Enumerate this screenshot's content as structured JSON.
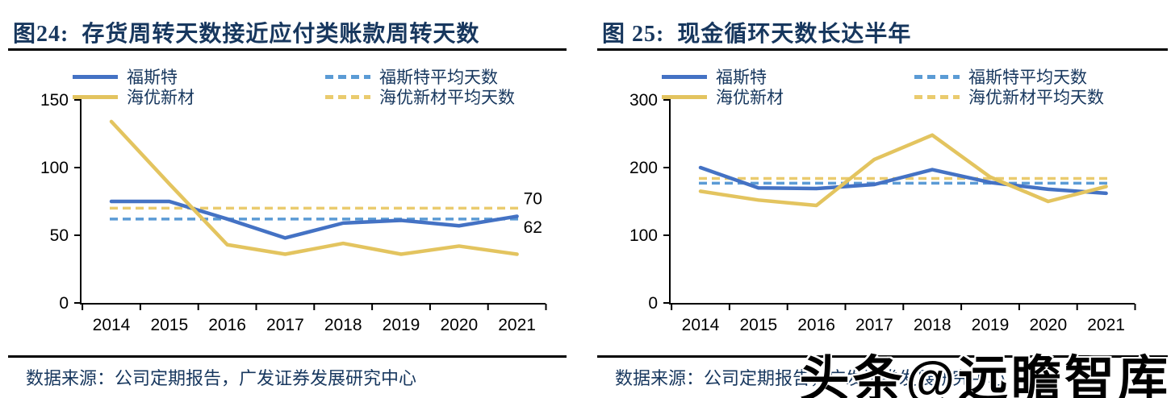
{
  "watermark": {
    "text": "头条@远瞻智库"
  },
  "chart_data": [
    {
      "type": "line",
      "figure_label": "图24:",
      "title": "存货周转天数接近应付类账款周转天数",
      "categories": [
        "2014",
        "2015",
        "2016",
        "2017",
        "2018",
        "2019",
        "2020",
        "2021"
      ],
      "series": [
        {
          "name": "福斯特",
          "color": "#4472C4",
          "line_style": "solid",
          "values": [
            75,
            75,
            62,
            48,
            59,
            61,
            57,
            64
          ]
        },
        {
          "name": "海优新材",
          "color": "#E3C45F",
          "line_style": "solid",
          "values": [
            134,
            88,
            43,
            36,
            44,
            36,
            42,
            36
          ]
        }
      ],
      "avg_lines": [
        {
          "name": "福斯特平均天数",
          "color": "#5B9BD5",
          "line_style": "dashed",
          "value": 62
        },
        {
          "name": "海优新材平均天数",
          "color": "#EACB6E",
          "line_style": "dashed",
          "value": 70
        }
      ],
      "end_labels": [
        {
          "text": "70",
          "value": 70,
          "position": "above"
        },
        {
          "text": "62",
          "value": 62,
          "position": "below"
        }
      ],
      "ylim": [
        0,
        150
      ],
      "yticks": [
        0,
        50,
        100,
        150
      ],
      "grid": false,
      "legend_position": "top",
      "source": "数据来源：公司定期报告，广发证券发展研究中心"
    },
    {
      "type": "line",
      "figure_label": "图 25:",
      "title": "现金循环天数长达半年",
      "categories": [
        "2014",
        "2015",
        "2016",
        "2017",
        "2018",
        "2019",
        "2020",
        "2021"
      ],
      "series": [
        {
          "name": "福斯特",
          "color": "#4472C4",
          "line_style": "solid",
          "values": [
            200,
            170,
            169,
            175,
            197,
            178,
            168,
            162
          ]
        },
        {
          "name": "海优新材",
          "color": "#E3C45F",
          "line_style": "solid",
          "values": [
            165,
            152,
            144,
            212,
            248,
            186,
            150,
            172
          ]
        }
      ],
      "avg_lines": [
        {
          "name": "福斯特平均天数",
          "color": "#5B9BD5",
          "line_style": "dashed",
          "value": 177
        },
        {
          "name": "海优新材平均天数",
          "color": "#EACB6E",
          "line_style": "dashed",
          "value": 184
        }
      ],
      "end_labels": [],
      "ylim": [
        0,
        300
      ],
      "yticks": [
        0,
        100,
        200,
        300
      ],
      "grid": false,
      "legend_position": "top",
      "source": "数据来源：公司定期报告，广发证券发展研究中心"
    }
  ]
}
